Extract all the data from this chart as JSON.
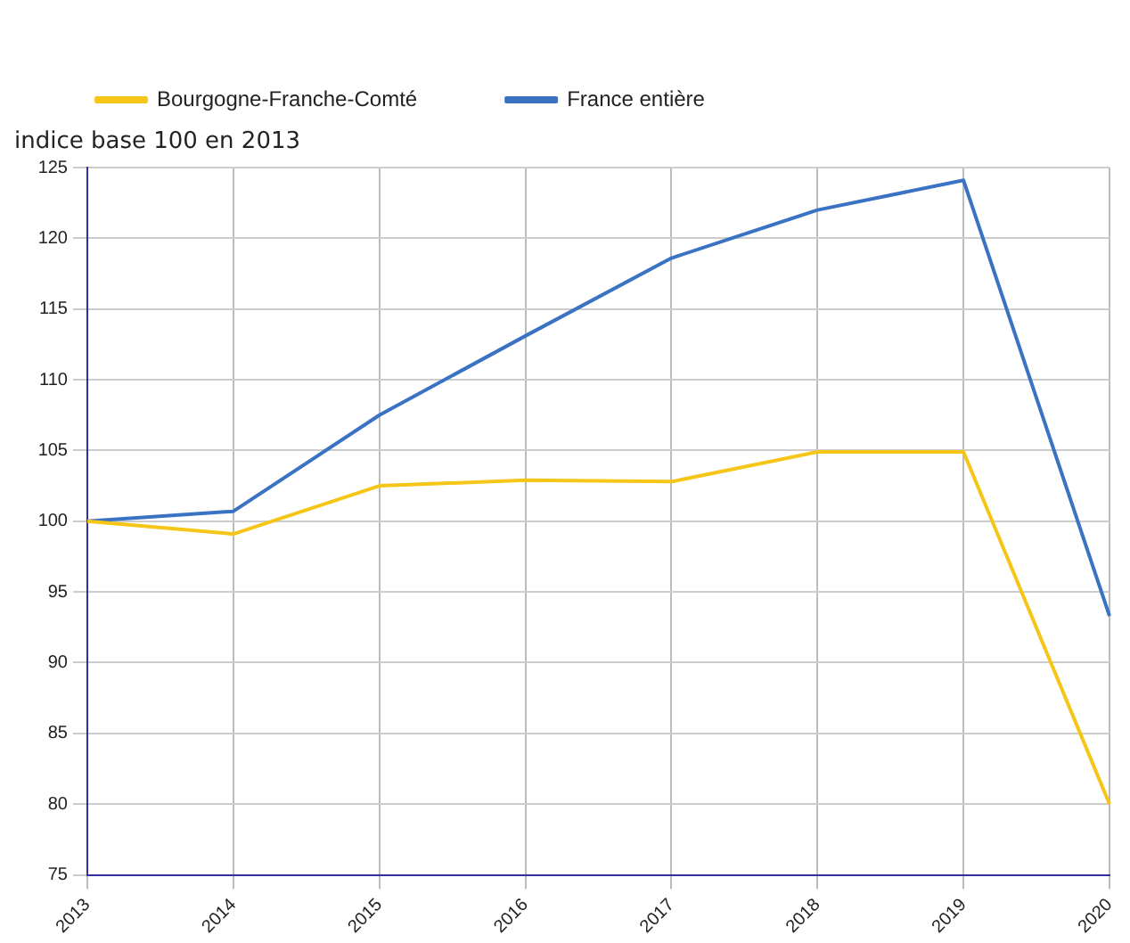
{
  "chart_data": {
    "type": "line",
    "ylabel": "indice base 100 en 2013",
    "categories": [
      "2013",
      "2014",
      "2015",
      "2016",
      "2017",
      "2018",
      "2019",
      "2020"
    ],
    "series": [
      {
        "name": "Bourgogne-Franche-Comté",
        "color": "#f5c518",
        "values": [
          100,
          99.1,
          102.5,
          102.9,
          102.8,
          104.9,
          104.9,
          80
        ]
      },
      {
        "name": "France entière",
        "color": "#3a72c4",
        "values": [
          100,
          100.7,
          107.5,
          113.1,
          118.6,
          122,
          124.1,
          93.3
        ]
      }
    ],
    "ylim": [
      75,
      125
    ],
    "yticks": [
      75,
      80,
      85,
      90,
      95,
      100,
      105,
      110,
      115,
      120,
      125
    ],
    "grid": true,
    "legend": "top left",
    "marker": "none",
    "line_style": "solid"
  }
}
